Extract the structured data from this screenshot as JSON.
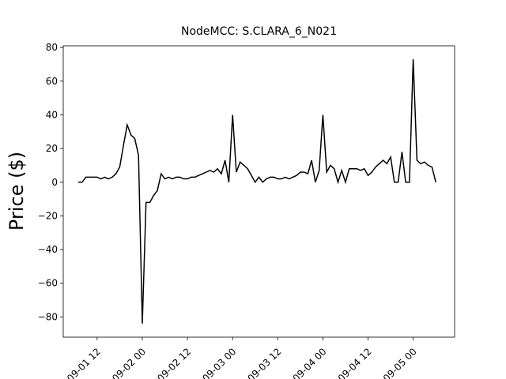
{
  "chart_data": {
    "type": "line",
    "title": "NodeMCC: S.CLARA_6_N021",
    "y_label": "Price ($)",
    "color": "#000000",
    "x": [
      "09-01 07",
      "09-01 08",
      "09-01 09",
      "09-01 10",
      "09-01 11",
      "09-01 12",
      "09-01 13",
      "09-01 14",
      "09-01 15",
      "09-01 16",
      "09-01 17",
      "09-01 18",
      "09-01 19",
      "09-01 20",
      "09-01 21",
      "09-01 22",
      "09-01 23",
      "09-02 00",
      "09-02 01",
      "09-02 02",
      "09-02 03",
      "09-02 04",
      "09-02 05",
      "09-02 06",
      "09-02 07",
      "09-02 08",
      "09-02 09",
      "09-02 10",
      "09-02 11",
      "09-02 12",
      "09-02 13",
      "09-02 14",
      "09-02 15",
      "09-02 16",
      "09-02 17",
      "09-02 18",
      "09-02 19",
      "09-02 20",
      "09-02 21",
      "09-02 22",
      "09-02 23",
      "09-03 00",
      "09-03 01",
      "09-03 02",
      "09-03 03",
      "09-03 04",
      "09-03 05",
      "09-03 06",
      "09-03 07",
      "09-03 08",
      "09-03 09",
      "09-03 10",
      "09-03 11",
      "09-03 12",
      "09-03 13",
      "09-03 14",
      "09-03 15",
      "09-03 16",
      "09-03 17",
      "09-03 18",
      "09-03 19",
      "09-03 20",
      "09-03 21",
      "09-03 22",
      "09-03 23",
      "09-04 00",
      "09-04 01",
      "09-04 02",
      "09-04 03",
      "09-04 04",
      "09-04 05",
      "09-04 06",
      "09-04 07",
      "09-04 08",
      "09-04 09",
      "09-04 10",
      "09-04 11",
      "09-04 12",
      "09-04 13",
      "09-04 14",
      "09-04 15",
      "09-04 16",
      "09-04 17",
      "09-04 18",
      "09-04 19",
      "09-04 20",
      "09-04 21",
      "09-04 22",
      "09-04 23",
      "09-05 00",
      "09-05 01",
      "09-05 02",
      "09-05 03",
      "09-05 04",
      "09-05 05",
      "09-05 06"
    ],
    "values": [
      0,
      0,
      3,
      3,
      3,
      3,
      2,
      3,
      2,
      3,
      5,
      9,
      22,
      34,
      28,
      26,
      16,
      -84,
      -12,
      -12,
      -8,
      -5,
      5,
      2,
      3,
      2,
      3,
      3,
      2,
      2,
      3,
      3,
      4,
      5,
      6,
      7,
      6,
      8,
      5,
      13,
      0,
      40,
      6,
      12,
      10,
      8,
      4,
      0,
      3,
      0,
      2,
      3,
      3,
      2,
      2,
      3,
      2,
      3,
      4,
      6,
      6,
      5,
      13,
      0,
      7,
      40,
      6,
      10,
      8,
      0,
      7,
      0,
      8,
      8,
      8,
      7,
      8,
      4,
      6,
      9,
      11,
      13,
      11,
      15,
      0,
      0,
      18,
      0,
      0,
      73,
      13,
      11,
      12,
      10,
      9,
      0
    ],
    "xlim": [
      "09-01 03",
      "09-05 11"
    ],
    "xticks": [
      "09-01 12",
      "09-02 00",
      "09-02 12",
      "09-03 00",
      "09-03 12",
      "09-04 00",
      "09-04 12",
      "09-05 00"
    ],
    "ylim": [
      -92,
      81
    ],
    "yticks": [
      {
        "value": -80,
        "label": "−80"
      },
      {
        "value": -60,
        "label": "−60"
      },
      {
        "value": -40,
        "label": "−40"
      },
      {
        "value": -20,
        "label": "−20"
      },
      0,
      20,
      40,
      60,
      80
    ]
  }
}
